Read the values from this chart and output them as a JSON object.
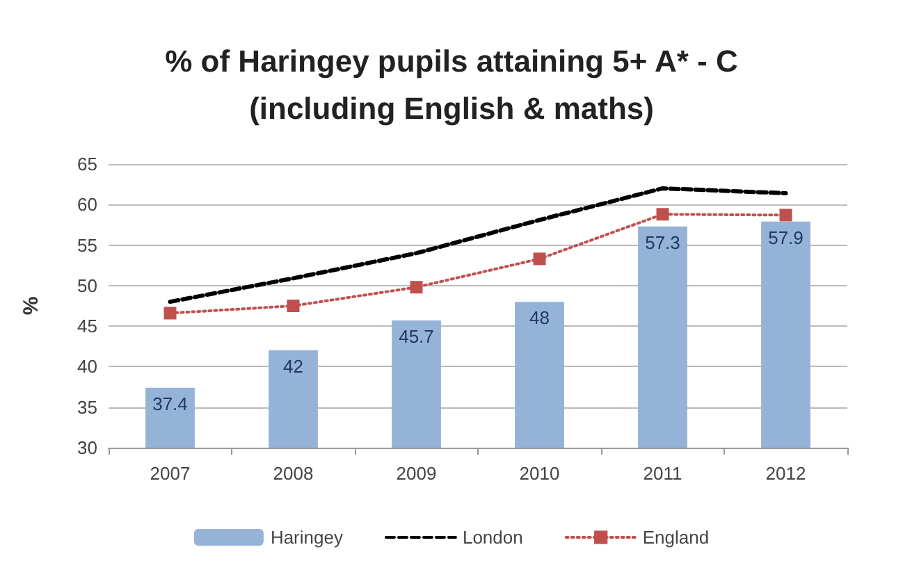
{
  "chart_data": {
    "type": "bar",
    "title": "% of Haringey pupils attaining 5+ A* - C\n(including English & maths)",
    "ylabel": "%",
    "categories": [
      "2007",
      "2008",
      "2009",
      "2010",
      "2011",
      "2012"
    ],
    "series": [
      {
        "name": "Haringey",
        "color": "#95b3d7",
        "values": [
          37.4,
          42,
          45.7,
          48,
          57.3,
          57.9
        ],
        "value_labels": [
          "37.4",
          "42",
          "45.7",
          "48",
          "57.3",
          "57.9"
        ]
      },
      {
        "name": "London",
        "type": "line",
        "color": "#000000",
        "line_style": "dashed",
        "marker": "none",
        "values": [
          48.0,
          50.9,
          54.0,
          58.1,
          62.0,
          61.4
        ]
      },
      {
        "name": "England",
        "type": "line",
        "color": "#c0504d",
        "line_style": "dotted",
        "marker": "square",
        "values": [
          46.6,
          47.5,
          49.8,
          53.3,
          58.8,
          58.7
        ]
      }
    ],
    "ylim": [
      30,
      65
    ],
    "yticks": [
      30,
      35,
      40,
      45,
      50,
      55,
      60,
      65
    ],
    "grid": "y",
    "legend": "bottom"
  }
}
